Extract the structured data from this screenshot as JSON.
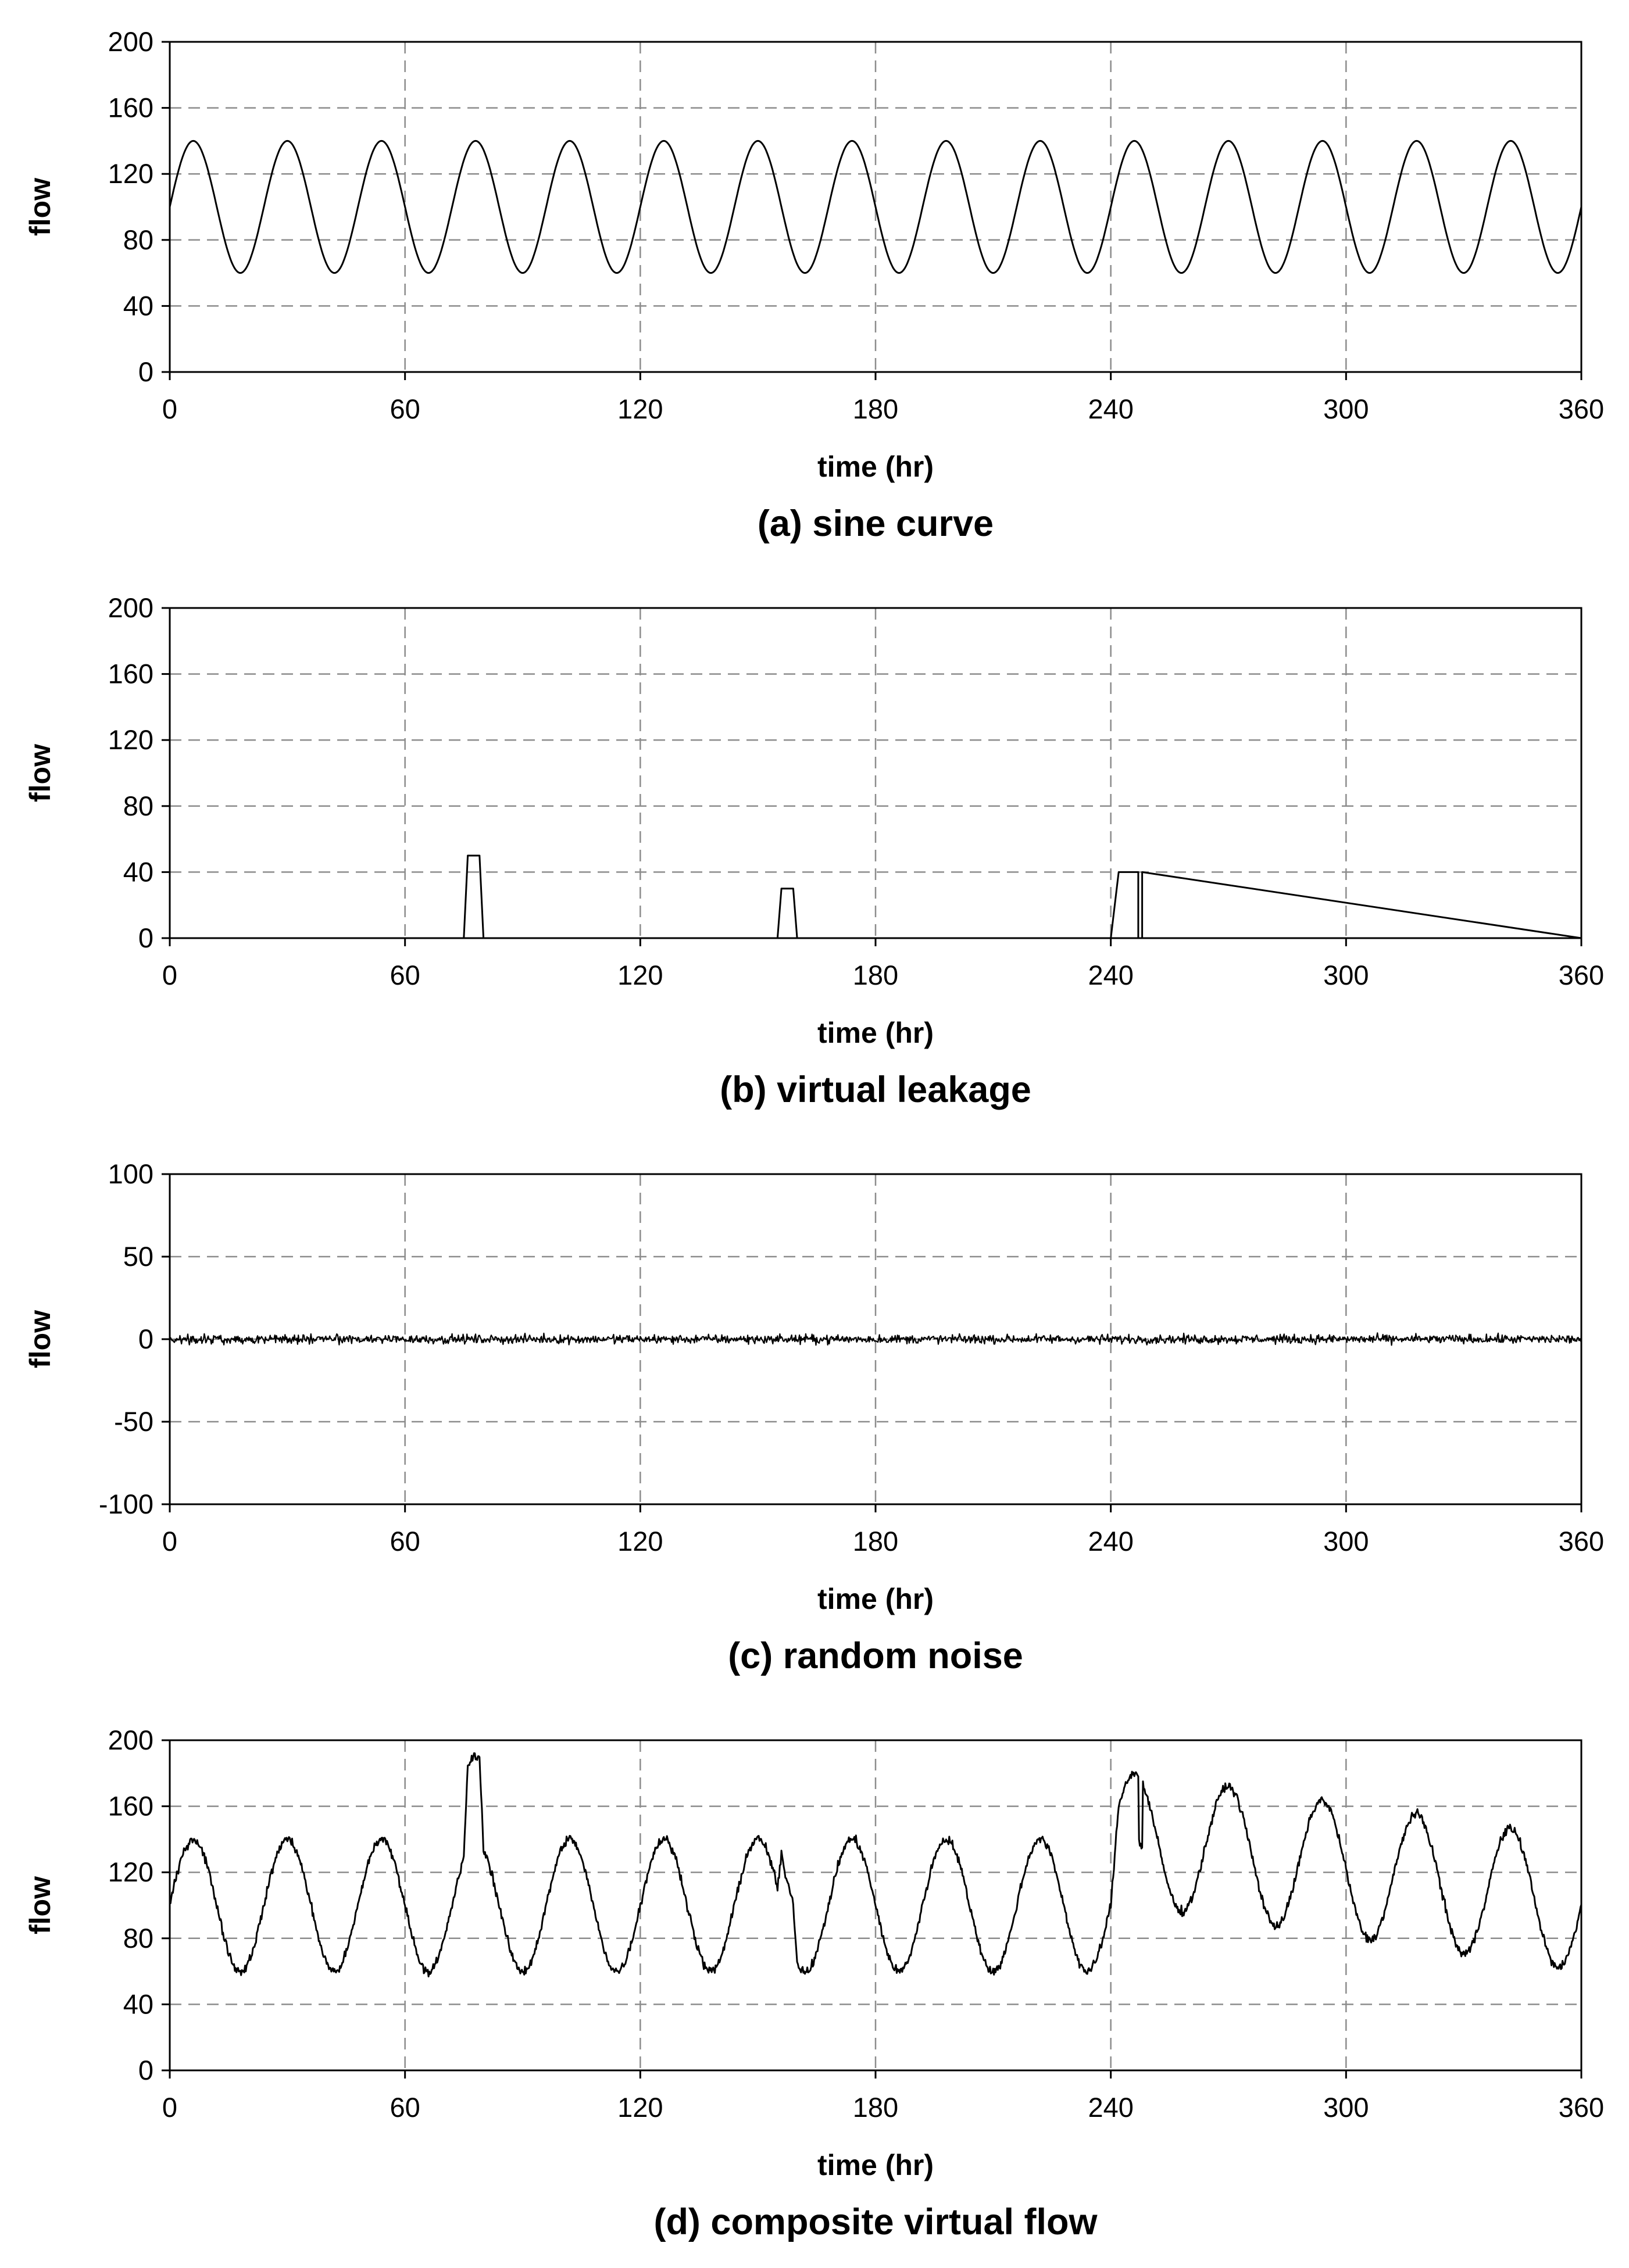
{
  "chart_data": [
    {
      "type": "line",
      "caption": "(a) sine curve",
      "xlabel": "time (hr)",
      "ylabel": "flow",
      "xlim": [
        0,
        360
      ],
      "ylim": [
        0,
        200
      ],
      "xticks": [
        "0",
        "60",
        "120",
        "180",
        "240",
        "300",
        "360"
      ],
      "yticks": [
        "0",
        "40",
        "80",
        "120",
        "160",
        "200"
      ],
      "grid": true,
      "series": [
        {
          "kind": "sine",
          "mean": 100,
          "amplitude": 40,
          "period_hr": 24,
          "x": [
            0,
            6,
            18,
            30,
            42,
            54,
            66,
            78,
            90,
            102,
            114,
            126,
            138,
            150,
            162,
            174,
            186,
            198,
            210,
            222,
            234,
            246,
            258,
            270,
            282,
            294,
            306,
            318,
            330,
            342,
            354,
            360
          ],
          "y": [
            100,
            140,
            60,
            140,
            60,
            140,
            60,
            140,
            60,
            140,
            60,
            140,
            60,
            140,
            60,
            140,
            60,
            140,
            60,
            140,
            60,
            140,
            60,
            140,
            60,
            140,
            60,
            140,
            60,
            140,
            60,
            100
          ]
        }
      ]
    },
    {
      "type": "line",
      "caption": "(b) virtual leakage",
      "xlabel": "time (hr)",
      "ylabel": "flow",
      "xlim": [
        0,
        360
      ],
      "ylim": [
        0,
        200
      ],
      "xticks": [
        "0",
        "60",
        "120",
        "180",
        "240",
        "300",
        "360"
      ],
      "yticks": [
        "0",
        "40",
        "80",
        "120",
        "160",
        "200"
      ],
      "grid": true,
      "series": [
        {
          "x": [
            0,
            75,
            76,
            79,
            80,
            155,
            156,
            159,
            160,
            240,
            242,
            247,
            247,
            248,
            248,
            360
          ],
          "y": [
            0,
            0,
            50,
            50,
            0,
            0,
            30,
            30,
            0,
            0,
            40,
            40,
            0,
            0,
            40,
            0
          ]
        }
      ]
    },
    {
      "type": "line",
      "caption": "(c) random noise",
      "xlabel": "time (hr)",
      "ylabel": "flow",
      "xlim": [
        0,
        360
      ],
      "ylim": [
        -100,
        100
      ],
      "xticks": [
        "0",
        "60",
        "120",
        "180",
        "240",
        "300",
        "360"
      ],
      "yticks": [
        "-100",
        "-50",
        "0",
        "50",
        "100"
      ],
      "grid": true,
      "series": [
        {
          "kind": "noise",
          "mean": 0,
          "range": [
            -4,
            4
          ]
        }
      ]
    },
    {
      "type": "line",
      "caption": "(d) composite virtual flow",
      "xlabel": "time (hr)",
      "ylabel": "flow",
      "xlim": [
        0,
        360
      ],
      "ylim": [
        0,
        200
      ],
      "xticks": [
        "0",
        "60",
        "120",
        "180",
        "240",
        "300",
        "360"
      ],
      "yticks": [
        "0",
        "40",
        "80",
        "120",
        "160",
        "200"
      ],
      "grid": true,
      "series": [
        {
          "kind": "composite",
          "components": [
            "(a) sine curve",
            "(b) virtual leakage",
            "(c) random noise"
          ]
        }
      ]
    }
  ]
}
